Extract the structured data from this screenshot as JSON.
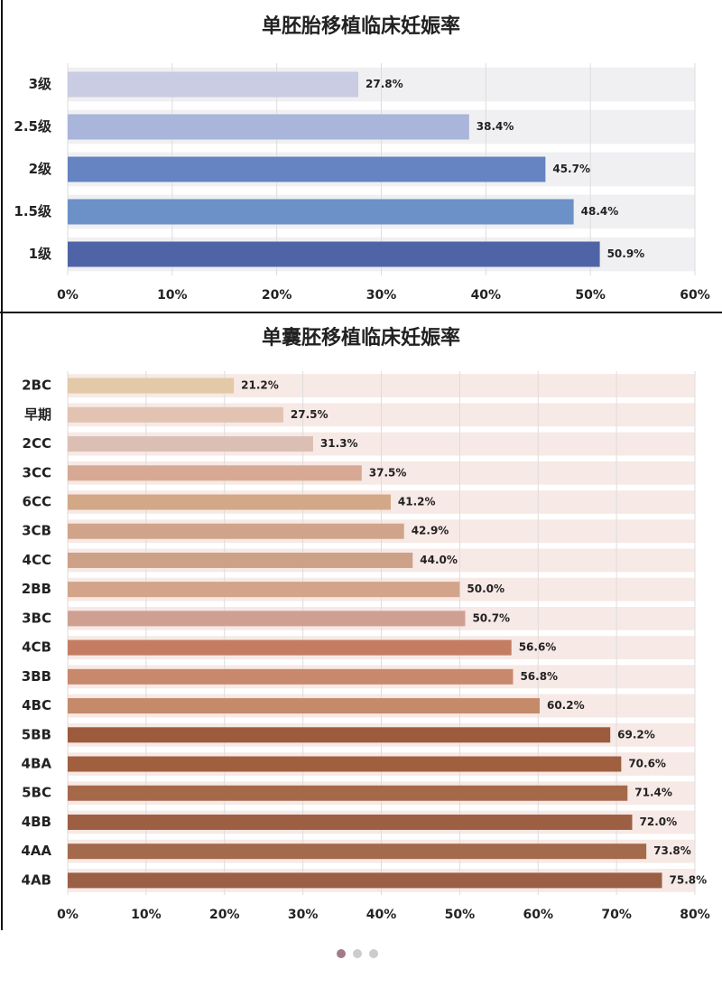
{
  "chart_data": [
    {
      "type": "bar",
      "title": "单胚胎移植临床妊娠率",
      "categories": [
        "3级",
        "2.5级",
        "2级",
        "1.5级",
        "1级"
      ],
      "values": [
        27.8,
        38.4,
        45.7,
        48.4,
        50.9
      ],
      "value_labels": [
        "27.8%",
        "38.4%",
        "45.7%",
        "48.4%",
        "50.9%"
      ],
      "colors": [
        "#c9cce2",
        "#a9b5da",
        "#6683c2",
        "#6b91c8",
        "#4f64a6"
      ],
      "xlim": [
        0,
        60
      ],
      "xticks": [
        {
          "value": 0,
          "label": "0%"
        },
        {
          "value": 10,
          "label": "10%"
        },
        {
          "value": 20,
          "label": "20%"
        },
        {
          "value": 30,
          "label": "30%"
        },
        {
          "value": 40,
          "label": "40%"
        },
        {
          "value": 50,
          "label": "50%"
        },
        {
          "value": 60,
          "label": "60%"
        }
      ],
      "grid": true
    },
    {
      "type": "bar",
      "title": "单囊胚移植临床妊娠率",
      "categories": [
        "2BC",
        "早期",
        "2CC",
        "3CC",
        "6CC",
        "3CB",
        "4CC",
        "2BB",
        "3BC",
        "4CB",
        "3BB",
        "4BC",
        "5BB",
        "4BA",
        "5BC",
        "4BB",
        "4AA",
        "4AB"
      ],
      "values": [
        21.2,
        27.5,
        31.3,
        37.5,
        41.2,
        42.9,
        44.0,
        50.0,
        50.7,
        56.6,
        56.8,
        60.2,
        69.2,
        70.6,
        71.4,
        72.0,
        73.8,
        75.8
      ],
      "value_labels": [
        "21.2%",
        "27.5%",
        "31.3%",
        "37.5%",
        "41.2%",
        "42.9%",
        "44.0%",
        "50.0%",
        "50.7%",
        "56.6%",
        "56.8%",
        "60.2%",
        "69.2%",
        "70.6%",
        "71.4%",
        "72.0%",
        "73.8%",
        "75.8%"
      ],
      "colors": [
        "#e3c9a8",
        "#e2c3b2",
        "#dcbfb4",
        "#d7a995",
        "#d3a886",
        "#d0a48a",
        "#cda088",
        "#d3a48a",
        "#cfa092",
        "#c47d63",
        "#c8886b",
        "#c48a6a",
        "#9c5b3d",
        "#a0603f",
        "#a5694a",
        "#9d5f44",
        "#a46a4c",
        "#9a5f45"
      ],
      "xlim": [
        0,
        80
      ],
      "xticks": [
        {
          "value": 0,
          "label": "0%"
        },
        {
          "value": 10,
          "label": "10%"
        },
        {
          "value": 20,
          "label": "20%"
        },
        {
          "value": 30,
          "label": "30%"
        },
        {
          "value": 40,
          "label": "40%"
        },
        {
          "value": 50,
          "label": "50%"
        },
        {
          "value": 60,
          "label": "60%"
        },
        {
          "value": 70,
          "label": "70%"
        },
        {
          "value": 80,
          "label": "80%"
        }
      ],
      "grid": true
    }
  ]
}
